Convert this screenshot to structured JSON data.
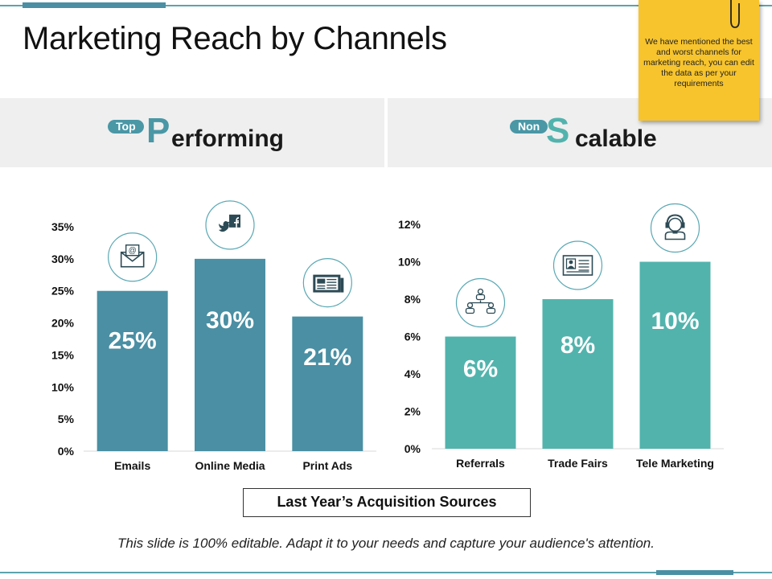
{
  "page": {
    "title": "Marketing Reach by Channels",
    "note": "We have mentioned the best and worst channels for marketing reach, you can edit the data as per your requirements",
    "legend_label": "Last Year’s Acquisition  Sources",
    "footer": "This slide is 100% editable. Adapt it to your needs and capture your audience's attention."
  },
  "headings": {
    "left": {
      "pill": "Top",
      "letter": "P",
      "rest": "erforming"
    },
    "right": {
      "pill": "Non",
      "letter": "S",
      "rest": "calable"
    }
  },
  "colors": {
    "left_bar": "#4a8fa3",
    "right_bar": "#52b3ad",
    "pill": "#4a97a6",
    "note": "#f7c42d"
  },
  "chart_data": [
    {
      "type": "bar",
      "title": "Top Performing",
      "categories": [
        "Emails",
        "Online Media",
        "Print Ads"
      ],
      "values": [
        25,
        30,
        21
      ],
      "data_labels": [
        "25%",
        "30%",
        "21%"
      ],
      "y_ticks": [
        "0%",
        "5%",
        "10%",
        "15%",
        "20%",
        "25%",
        "30%",
        "35%"
      ],
      "ylim": [
        0,
        35
      ],
      "icons": [
        "email-icon",
        "social-media-icon",
        "newspaper-icon"
      ],
      "grid": false
    },
    {
      "type": "bar",
      "title": "Non Scalable",
      "categories": [
        "Referrals",
        "Trade Fairs",
        "Tele Marketing"
      ],
      "values": [
        6,
        8,
        10
      ],
      "data_labels": [
        "6%",
        "8%",
        "10%"
      ],
      "y_ticks": [
        "0%",
        "2%",
        "4%",
        "6%",
        "8%",
        "10%",
        "12%"
      ],
      "ylim": [
        0,
        12
      ],
      "icons": [
        "referral-network-icon",
        "id-card-icon",
        "call-center-agent-icon"
      ],
      "grid": false
    }
  ]
}
